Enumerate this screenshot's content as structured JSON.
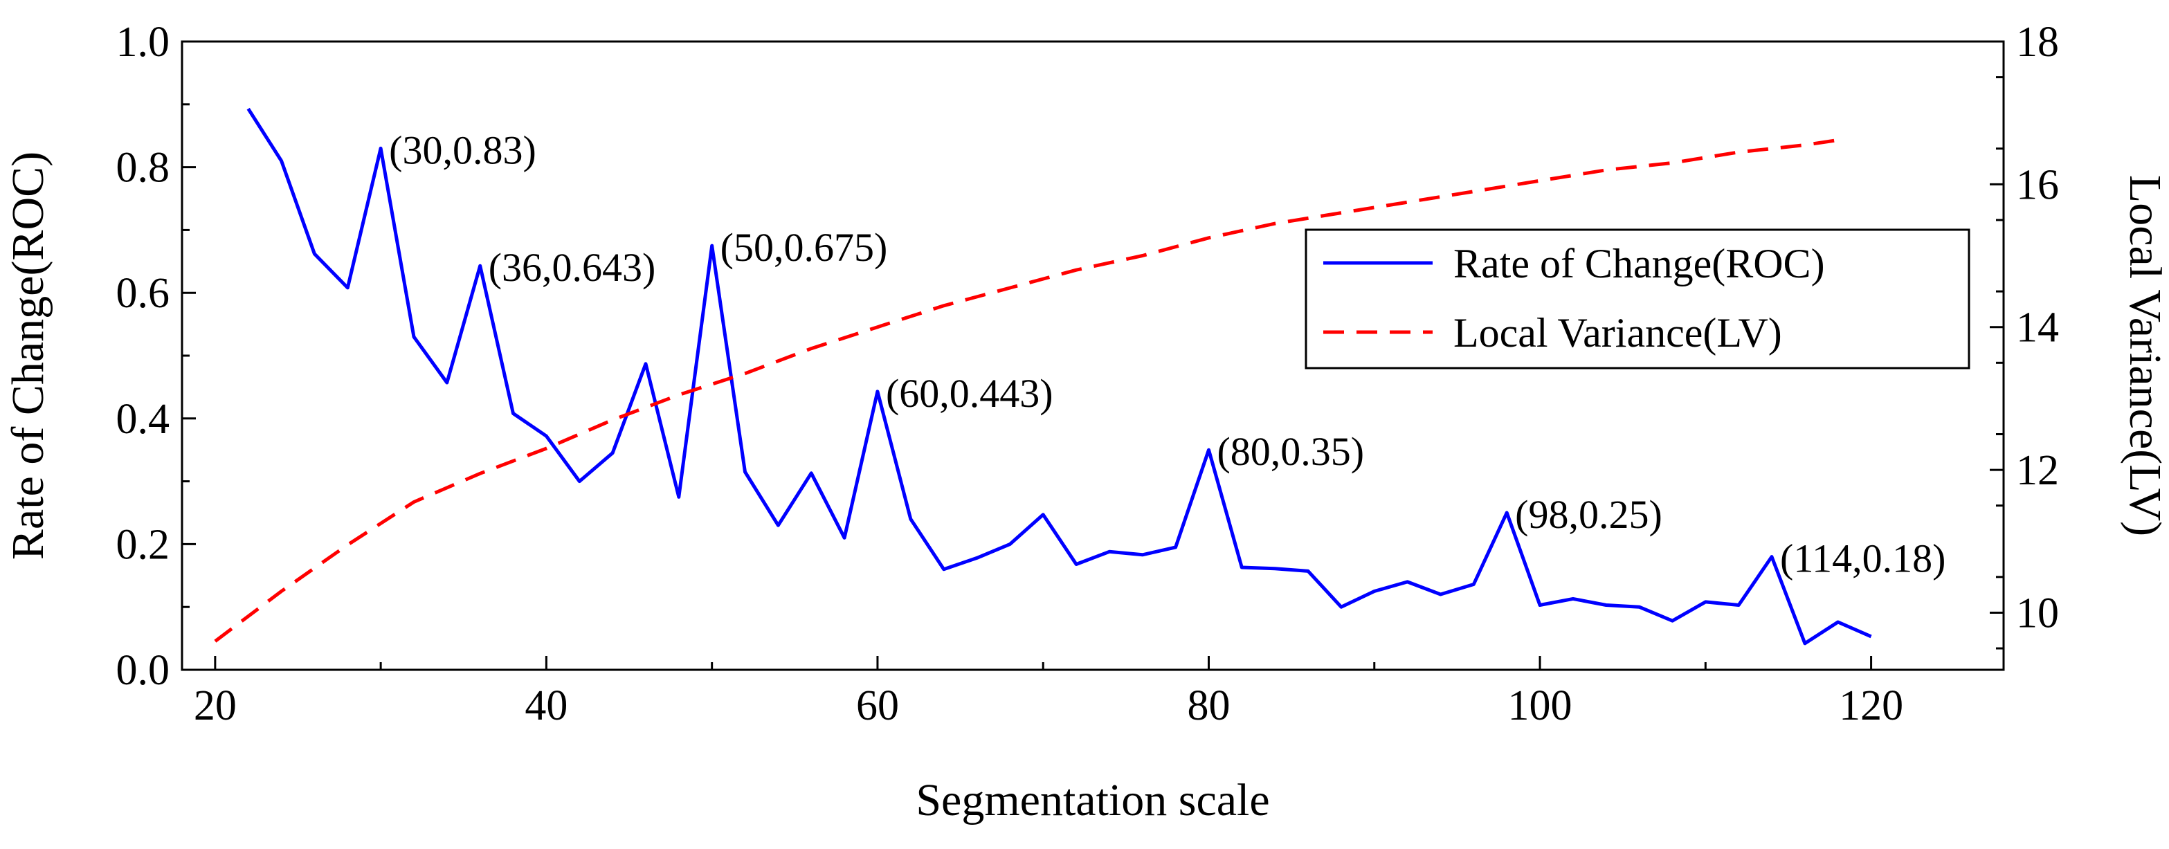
{
  "chart_data": {
    "type": "line",
    "xlabel": "Segmentation scale",
    "ylabel": "Rate of Change(ROC)",
    "y2label": "Local Variance(LV)",
    "xlim": [
      18,
      128
    ],
    "ylim": [
      0,
      1
    ],
    "y2lim": [
      9.2,
      18
    ],
    "xticks": [
      20,
      40,
      60,
      80,
      100,
      120
    ],
    "yticks": [
      0.0,
      0.2,
      0.4,
      0.6,
      0.8,
      1.0
    ],
    "y2ticks": [
      10,
      12,
      14,
      16,
      18
    ],
    "grid": false,
    "legend_position": "right",
    "series": [
      {
        "name": "Rate of Change(ROC)",
        "axis": "left",
        "color": "#0000ff",
        "style": "solid",
        "x": [
          22,
          24,
          26,
          28,
          30,
          32,
          34,
          36,
          38,
          40,
          42,
          44,
          46,
          48,
          50,
          52,
          54,
          56,
          58,
          60,
          62,
          64,
          66,
          68,
          70,
          72,
          74,
          76,
          78,
          80,
          82,
          84,
          86,
          88,
          90,
          92,
          94,
          96,
          98,
          100,
          102,
          104,
          106,
          108,
          110,
          112,
          114,
          116,
          118,
          120
        ],
        "values": [
          0.893,
          0.81,
          0.662,
          0.608,
          0.83,
          0.53,
          0.457,
          0.643,
          0.408,
          0.372,
          0.3,
          0.345,
          0.487,
          0.275,
          0.675,
          0.315,
          0.23,
          0.313,
          0.21,
          0.443,
          0.24,
          0.16,
          0.178,
          0.2,
          0.247,
          0.168,
          0.188,
          0.183,
          0.195,
          0.35,
          0.163,
          0.161,
          0.157,
          0.1,
          0.125,
          0.14,
          0.12,
          0.136,
          0.25,
          0.103,
          0.113,
          0.103,
          0.1,
          0.078,
          0.108,
          0.103,
          0.18,
          0.042,
          0.076,
          0.053
        ]
      },
      {
        "name": "Local Variance(LV)",
        "axis": "right",
        "color": "#ff0000",
        "style": "dashed",
        "x": [
          20,
          24,
          28,
          32,
          36,
          40,
          44,
          48,
          52,
          56,
          60,
          64,
          68,
          72,
          76,
          80,
          84,
          88,
          92,
          96,
          100,
          104,
          108,
          112,
          116,
          118
        ],
        "values": [
          9.6,
          10.3,
          10.95,
          11.55,
          11.95,
          12.3,
          12.7,
          13.05,
          13.35,
          13.7,
          14.0,
          14.3,
          14.55,
          14.8,
          15.0,
          15.25,
          15.45,
          15.6,
          15.75,
          15.9,
          16.05,
          16.2,
          16.3,
          16.45,
          16.55,
          16.62
        ]
      }
    ],
    "annotations": [
      {
        "x": 30,
        "y": 0.83,
        "text": "(30,0.83)"
      },
      {
        "x": 36,
        "y": 0.643,
        "text": "(36,0.643)"
      },
      {
        "x": 50,
        "y": 0.675,
        "text": "(50,0.675)"
      },
      {
        "x": 60,
        "y": 0.443,
        "text": "(60,0.443)"
      },
      {
        "x": 80,
        "y": 0.35,
        "text": "(80,0.35)"
      },
      {
        "x": 98,
        "y": 0.25,
        "text": "(98,0.25)"
      },
      {
        "x": 114,
        "y": 0.18,
        "text": "(114,0.18)"
      }
    ]
  }
}
